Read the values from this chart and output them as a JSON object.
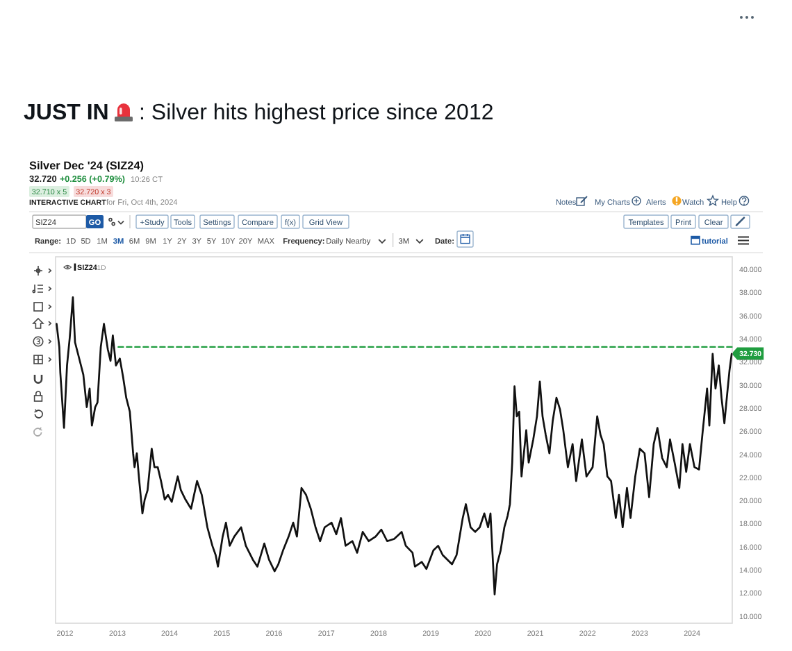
{
  "chart_data": {
    "type": "line",
    "title": "Silver Dec '24 (SIZ24)",
    "xlim": [
      "2011-10-27",
      "2024-10-08"
    ],
    "xticks": [
      "2012",
      "2013",
      "2014",
      "2015",
      "2016",
      "2017",
      "2018",
      "2019",
      "2020",
      "2021",
      "2022",
      "2023",
      "2024"
    ],
    "ylim": [
      9.4,
      41.1
    ],
    "yticks": [
      {
        "value": 10,
        "label": "10.000"
      },
      {
        "value": 12,
        "label": "12.000"
      },
      {
        "value": 14,
        "label": "14.000"
      },
      {
        "value": 16,
        "label": "16.000"
      },
      {
        "value": 18,
        "label": "18.000"
      },
      {
        "value": 20,
        "label": "20.000"
      },
      {
        "value": 22,
        "label": "22.000"
      },
      {
        "value": 24,
        "label": "24.000"
      },
      {
        "value": 26,
        "label": "26.000"
      },
      {
        "value": 28,
        "label": "28.000"
      },
      {
        "value": 30,
        "label": "30.000"
      },
      {
        "value": 32,
        "label": "32.000"
      },
      {
        "value": 34,
        "label": "34.000"
      },
      {
        "value": 36,
        "label": "36.000"
      },
      {
        "value": 38,
        "label": "38.000"
      },
      {
        "value": 40,
        "label": "40.000"
      }
    ],
    "legend": "top left",
    "series": [
      {
        "name": "SIZ24",
        "color": "#111111",
        "x": [
          "2011-11-03",
          "2011-11-22",
          "2011-11-29",
          "2011-12-25",
          "2012-01-15",
          "2012-02-03",
          "2012-02-25",
          "2012-03-11",
          "2012-04-05",
          "2012-05-08",
          "2012-06-01",
          "2012-06-21",
          "2012-07-07",
          "2012-07-30",
          "2012-08-15",
          "2012-09-07",
          "2012-09-29",
          "2012-10-26",
          "2012-11-14",
          "2012-11-30",
          "2012-12-22",
          "2013-01-18",
          "2013-02-10",
          "2013-03-04",
          "2013-03-29",
          "2013-04-21",
          "2013-05-01",
          "2013-05-17",
          "2013-06-03",
          "2013-06-25",
          "2013-07-11",
          "2013-07-31",
          "2013-08-29",
          "2013-09-17",
          "2013-10-10",
          "2013-11-02",
          "2013-11-28",
          "2013-12-21",
          "2014-01-16",
          "2014-02-27",
          "2014-03-21",
          "2014-04-22",
          "2014-05-31",
          "2014-07-12",
          "2014-08-14",
          "2014-09-22",
          "2014-10-27",
          "2014-11-19",
          "2014-12-05",
          "2015-01-07",
          "2015-01-30",
          "2015-02-25",
          "2015-03-29",
          "2015-05-16",
          "2015-06-18",
          "2015-08-06",
          "2015-09-07",
          "2015-10-25",
          "2015-11-27",
          "2016-01-05",
          "2016-01-31",
          "2016-03-04",
          "2016-04-12",
          "2016-05-14",
          "2016-06-09",
          "2016-07-11",
          "2016-08-12",
          "2016-09-14",
          "2016-10-17",
          "2016-11-18",
          "2016-12-20",
          "2017-02-06",
          "2017-03-11",
          "2017-04-13",
          "2017-05-15",
          "2017-07-02",
          "2017-08-04",
          "2017-09-12",
          "2017-10-24",
          "2017-12-11",
          "2018-01-20",
          "2018-03-02",
          "2018-04-20",
          "2018-06-11",
          "2018-07-10",
          "2018-08-26",
          "2018-09-12",
          "2018-10-30",
          "2018-12-01",
          "2019-01-19",
          "2019-02-21",
          "2019-03-25",
          "2019-05-29",
          "2019-06-30",
          "2019-08-12",
          "2019-09-03",
          "2019-10-06",
          "2019-11-07",
          "2019-12-09",
          "2020-01-10",
          "2020-02-05",
          "2020-02-22",
          "2020-03-06",
          "2020-03-22",
          "2020-04-08",
          "2020-05-03",
          "2020-05-29",
          "2020-06-21",
          "2020-07-07",
          "2020-07-23",
          "2020-08-08",
          "2020-08-24",
          "2020-09-10",
          "2020-09-26",
          "2020-10-29",
          "2020-11-15",
          "2020-12-17",
          "2021-01-12",
          "2021-02-01",
          "2021-02-20",
          "2021-03-14",
          "2021-04-09",
          "2021-05-02",
          "2021-05-28",
          "2021-06-22",
          "2021-07-15",
          "2021-08-16",
          "2021-09-18",
          "2021-10-13",
          "2021-11-22",
          "2021-12-24",
          "2022-02-05",
          "2022-03-09",
          "2022-04-01",
          "2022-04-23",
          "2022-05-19",
          "2022-06-14",
          "2022-07-17",
          "2022-08-08",
          "2022-09-03",
          "2022-10-03",
          "2022-10-28",
          "2022-11-30",
          "2023-01-01",
          "2023-02-03",
          "2023-03-07",
          "2023-04-08",
          "2023-05-04",
          "2023-06-06",
          "2023-07-08",
          "2023-07-31",
          "2023-09-01",
          "2023-10-04",
          "2023-10-26",
          "2023-11-21",
          "2023-12-17",
          "2024-01-18",
          "2024-02-19",
          "2024-03-13",
          "2024-04-15",
          "2024-05-01",
          "2024-05-24",
          "2024-06-13",
          "2024-07-06",
          "2024-07-25",
          "2024-08-14",
          "2024-09-03",
          "2024-09-19",
          "2024-10-04"
        ],
        "values": [
          35.3,
          33.3,
          31.1,
          26.3,
          31.7,
          34.1,
          37.6,
          33.7,
          32.5,
          30.9,
          28.1,
          29.7,
          26.5,
          28.1,
          28.5,
          33.3,
          35.3,
          33.1,
          32.1,
          34.3,
          31.7,
          32.3,
          30.7,
          28.9,
          27.7,
          24.1,
          22.9,
          24.1,
          21.7,
          18.9,
          20.1,
          20.9,
          24.5,
          22.9,
          22.9,
          21.7,
          20.1,
          20.5,
          19.9,
          22.1,
          20.9,
          20.1,
          19.3,
          21.7,
          20.5,
          17.7,
          16.1,
          15.3,
          14.3,
          16.9,
          18.1,
          16.1,
          16.9,
          17.7,
          16.1,
          14.9,
          14.3,
          16.3,
          14.9,
          13.9,
          14.5,
          15.7,
          16.9,
          18.1,
          16.9,
          21.1,
          20.5,
          19.3,
          17.7,
          16.5,
          17.7,
          18.1,
          17.1,
          18.5,
          16.1,
          16.5,
          15.5,
          17.3,
          16.5,
          16.9,
          17.5,
          16.5,
          16.7,
          17.3,
          16.1,
          15.5,
          14.3,
          14.7,
          14.1,
          15.7,
          16.1,
          15.3,
          14.5,
          15.3,
          18.5,
          19.7,
          17.7,
          17.3,
          17.7,
          18.9,
          17.7,
          18.9,
          15.7,
          11.9,
          14.5,
          15.7,
          17.7,
          18.7,
          19.7,
          23.3,
          29.9,
          27.3,
          27.7,
          22.1,
          26.1,
          23.3,
          25.3,
          27.3,
          30.3,
          27.3,
          25.7,
          24.1,
          26.9,
          28.9,
          27.9,
          26.1,
          22.9,
          24.9,
          21.7,
          25.3,
          22.1,
          22.9,
          27.3,
          25.7,
          24.9,
          22.1,
          21.7,
          18.5,
          20.5,
          17.7,
          21.1,
          18.5,
          22.1,
          24.5,
          24.1,
          20.3,
          24.9,
          26.3,
          23.7,
          22.9,
          25.3,
          23.3,
          21.1,
          24.9,
          22.5,
          24.9,
          22.9,
          22.7,
          25.7,
          29.7,
          26.5,
          32.7,
          29.7,
          31.7,
          28.9,
          26.7,
          29.3,
          31.3,
          32.7
        ]
      },
      {
        "color": "#1f9d3f",
        "line_style": "dashed",
        "x": [
          "2013-01-08",
          "2024-10-08"
        ],
        "values": [
          33.3,
          33.3
        ]
      }
    ],
    "annotations": [
      "JUST IN",
      ": Silver hits highest price since 2012",
      "32.720",
      "+0.256 (+0.79%)",
      "10:26 CT",
      "32.710 x 5",
      "32.720 x 3",
      "INTERACTIVE CHART",
      "for Fri, Oct 4th, 2024",
      "Notes",
      "My Charts",
      "Alerts",
      "Watch",
      "Help",
      "SIZ24",
      "GO",
      "+Study",
      "Tools",
      "Settings",
      "Compare",
      "f(x)",
      "Grid View",
      "Templates",
      "Print",
      "Clear",
      "Range:",
      "1D",
      "5D",
      "1M",
      "3M",
      "6M",
      "9M",
      "1Y",
      "2Y",
      "3Y",
      "5Y",
      "10Y",
      "20Y",
      "MAX",
      "Frequency:",
      "Daily Nearby",
      "3M",
      "Date:",
      "tutorial",
      "1D",
      {
        "text": "32.730",
        "x": "2024-10-04",
        "y": 32.73
      }
    ]
  }
}
